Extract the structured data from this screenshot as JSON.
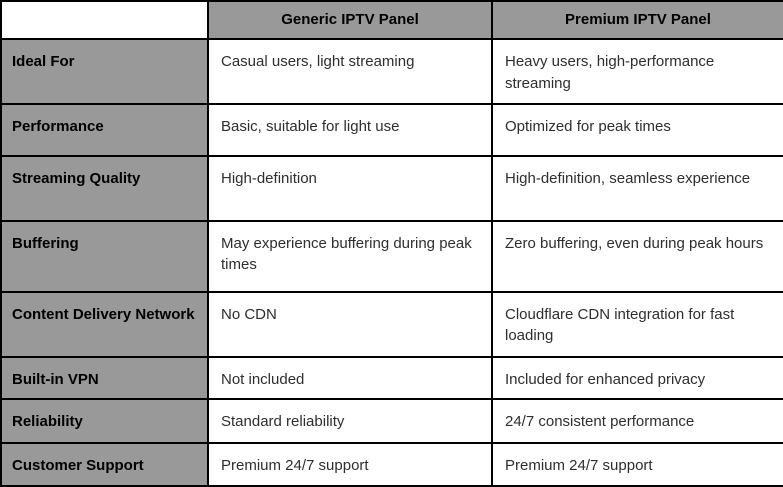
{
  "table": {
    "corner_label": "",
    "columns": [
      "Generic IPTV Panel",
      "Premium IPTV Panel"
    ],
    "rows": [
      {
        "feature": "Ideal For",
        "generic": "Casual users, light streaming",
        "premium": "Heavy users, high-performance streaming"
      },
      {
        "feature": "Performance",
        "generic": "Basic, suitable for light use",
        "premium": "Optimized for peak times"
      },
      {
        "feature": "Streaming Quality",
        "generic": "High-definition",
        "premium": "High-definition, seamless experience"
      },
      {
        "feature": "Buffering",
        "generic": "May experience buffering during peak times",
        "premium": "Zero buffering, even during peak hours"
      },
      {
        "feature": "Content Delivery Network",
        "generic": "No CDN",
        "premium": "Cloudflare CDN integration for fast loading"
      },
      {
        "feature": "Built-in VPN",
        "generic": "Not included",
        "premium": "Included for enhanced privacy"
      },
      {
        "feature": "Reliability",
        "generic": "Standard reliability",
        "premium": "24/7 consistent performance"
      },
      {
        "feature": "Customer Support",
        "generic": "Premium 24/7 support",
        "premium": "Premium 24/7 support"
      }
    ],
    "colors": {
      "header_bg": "#999999",
      "border": "#000000",
      "cell_bg": "#ffffff",
      "label_text": "#000000",
      "body_text": "#2e2e2e"
    }
  }
}
